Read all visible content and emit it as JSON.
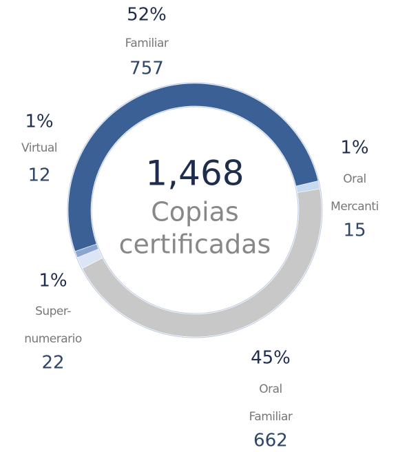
{
  "chart_data": {
    "type": "donut",
    "categories": [
      [
        "Familiar"
      ],
      [
        "Oral",
        "Mercanti"
      ],
      [
        "Oral",
        "Familiar"
      ],
      [
        "Super-",
        "numerario"
      ],
      [
        "Virtual"
      ]
    ],
    "values": [
      757,
      15,
      662,
      22,
      12
    ],
    "percent_labels": [
      "52%",
      "1%",
      "45%",
      "1%",
      "1%"
    ],
    "colors": [
      "#3a6096",
      "#c5d9f1",
      "#c8c8c8",
      "#dbe5f5",
      "#8aa5cf"
    ],
    "total_label": "1,468",
    "center_text": [
      "Copias",
      "certificadas"
    ]
  }
}
